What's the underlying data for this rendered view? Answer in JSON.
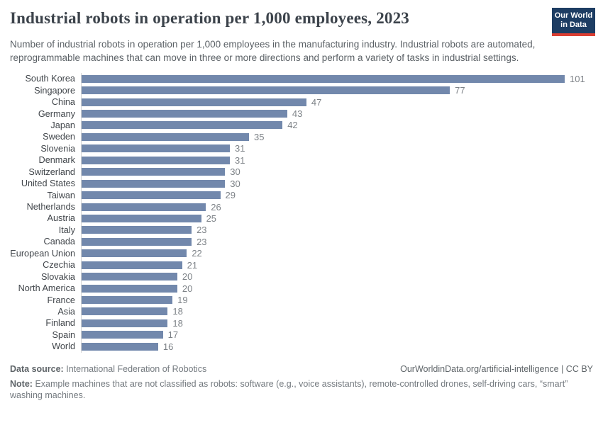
{
  "header": {
    "title": "Industrial robots in operation per 1,000 employees, 2023",
    "subtitle": "Number of industrial robots in operation per 1,000 employees in the manufacturing industry. Industrial robots are automated, reprogrammable machines that can move in three or more directions and perform a variety of tasks in industrial settings.",
    "logo": {
      "line1": "Our World",
      "line2": "in Data"
    }
  },
  "chart_data": {
    "type": "bar",
    "orientation": "horizontal",
    "title": "Industrial robots in operation per 1,000 employees, 2023",
    "xlabel": "",
    "ylabel": "",
    "xlim": [
      0,
      101
    ],
    "grid": false,
    "value_labels": true,
    "bar_color": "#7288ac",
    "categories": [
      "South Korea",
      "Singapore",
      "China",
      "Germany",
      "Japan",
      "Sweden",
      "Slovenia",
      "Denmark",
      "Switzerland",
      "United States",
      "Taiwan",
      "Netherlands",
      "Austria",
      "Italy",
      "Canada",
      "European Union",
      "Czechia",
      "Slovakia",
      "North America",
      "France",
      "Asia",
      "Finland",
      "Spain",
      "World"
    ],
    "values": [
      101,
      77,
      47,
      43,
      42,
      35,
      31,
      31,
      30,
      30,
      29,
      26,
      25,
      23,
      23,
      22,
      21,
      20,
      20,
      19,
      18,
      18,
      17,
      16
    ]
  },
  "footer": {
    "datasource_label": "Data source:",
    "datasource_value": "International Federation of Robotics",
    "attribution": "OurWorldinData.org/artificial-intelligence | CC BY",
    "note_label": "Note:",
    "note_value": "Example machines that are not classified as robots: software (e.g., voice assistants), remote-controlled drones, self-driving cars, “smart” washing machines."
  },
  "colors": {
    "bar": "#7288ac",
    "title_text": "#3c434b",
    "axis_line": "#d4d4d4",
    "logo_background": "#1d3d63",
    "logo_accent": "#dc3e32"
  }
}
